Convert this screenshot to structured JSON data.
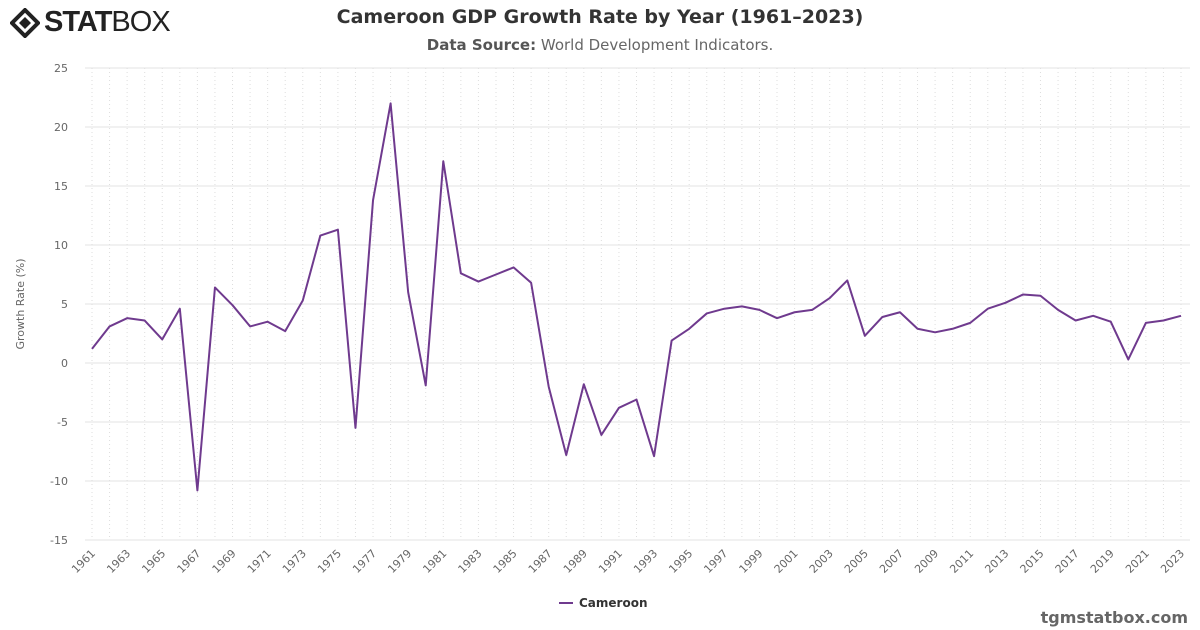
{
  "header": {
    "logo_text": "STATBOX",
    "title": "Cameroon GDP Growth Rate by Year (1961–2023)",
    "source_label": "Data Source:",
    "source_value": "World Development Indicators."
  },
  "footer": {
    "site": "tgmstatbox.com"
  },
  "chart_data": {
    "type": "line",
    "title": "Cameroon GDP Growth Rate by Year (1961–2023)",
    "ylabel": "Growth Rate (%)",
    "xlabel": "",
    "ylim": [
      -15,
      25
    ],
    "yticks": [
      -15,
      -10,
      -5,
      0,
      5,
      10,
      15,
      20,
      25
    ],
    "grid": true,
    "legend": "bottom-center",
    "color": "#6f3a8e",
    "x": [
      1961,
      1962,
      1963,
      1964,
      1965,
      1966,
      1967,
      1968,
      1969,
      1970,
      1971,
      1972,
      1973,
      1974,
      1975,
      1976,
      1977,
      1978,
      1979,
      1980,
      1981,
      1982,
      1983,
      1984,
      1985,
      1986,
      1987,
      1988,
      1989,
      1990,
      1991,
      1992,
      1993,
      1994,
      1995,
      1996,
      1997,
      1998,
      1999,
      2000,
      2001,
      2002,
      2003,
      2004,
      2005,
      2006,
      2007,
      2008,
      2009,
      2010,
      2011,
      2012,
      2013,
      2014,
      2015,
      2016,
      2017,
      2018,
      2019,
      2020,
      2021,
      2022,
      2023
    ],
    "series": [
      {
        "name": "Cameroon",
        "values": [
          1.2,
          3.1,
          3.8,
          3.6,
          2.0,
          4.6,
          -10.8,
          6.4,
          4.9,
          3.1,
          3.5,
          2.7,
          5.3,
          10.8,
          11.3,
          -5.5,
          13.8,
          22.0,
          6.0,
          -1.9,
          17.1,
          7.6,
          6.9,
          7.5,
          8.1,
          6.8,
          -2.0,
          -7.8,
          -1.8,
          -6.1,
          -3.8,
          -3.1,
          -7.9,
          1.9,
          2.9,
          4.2,
          4.6,
          4.8,
          4.5,
          3.8,
          4.3,
          4.5,
          5.5,
          7.0,
          2.3,
          3.9,
          4.3,
          2.9,
          2.6,
          2.9,
          3.4,
          4.6,
          5.1,
          5.8,
          5.7,
          4.5,
          3.6,
          4.0,
          3.5,
          0.3,
          3.4,
          3.6,
          4.0
        ]
      }
    ]
  }
}
